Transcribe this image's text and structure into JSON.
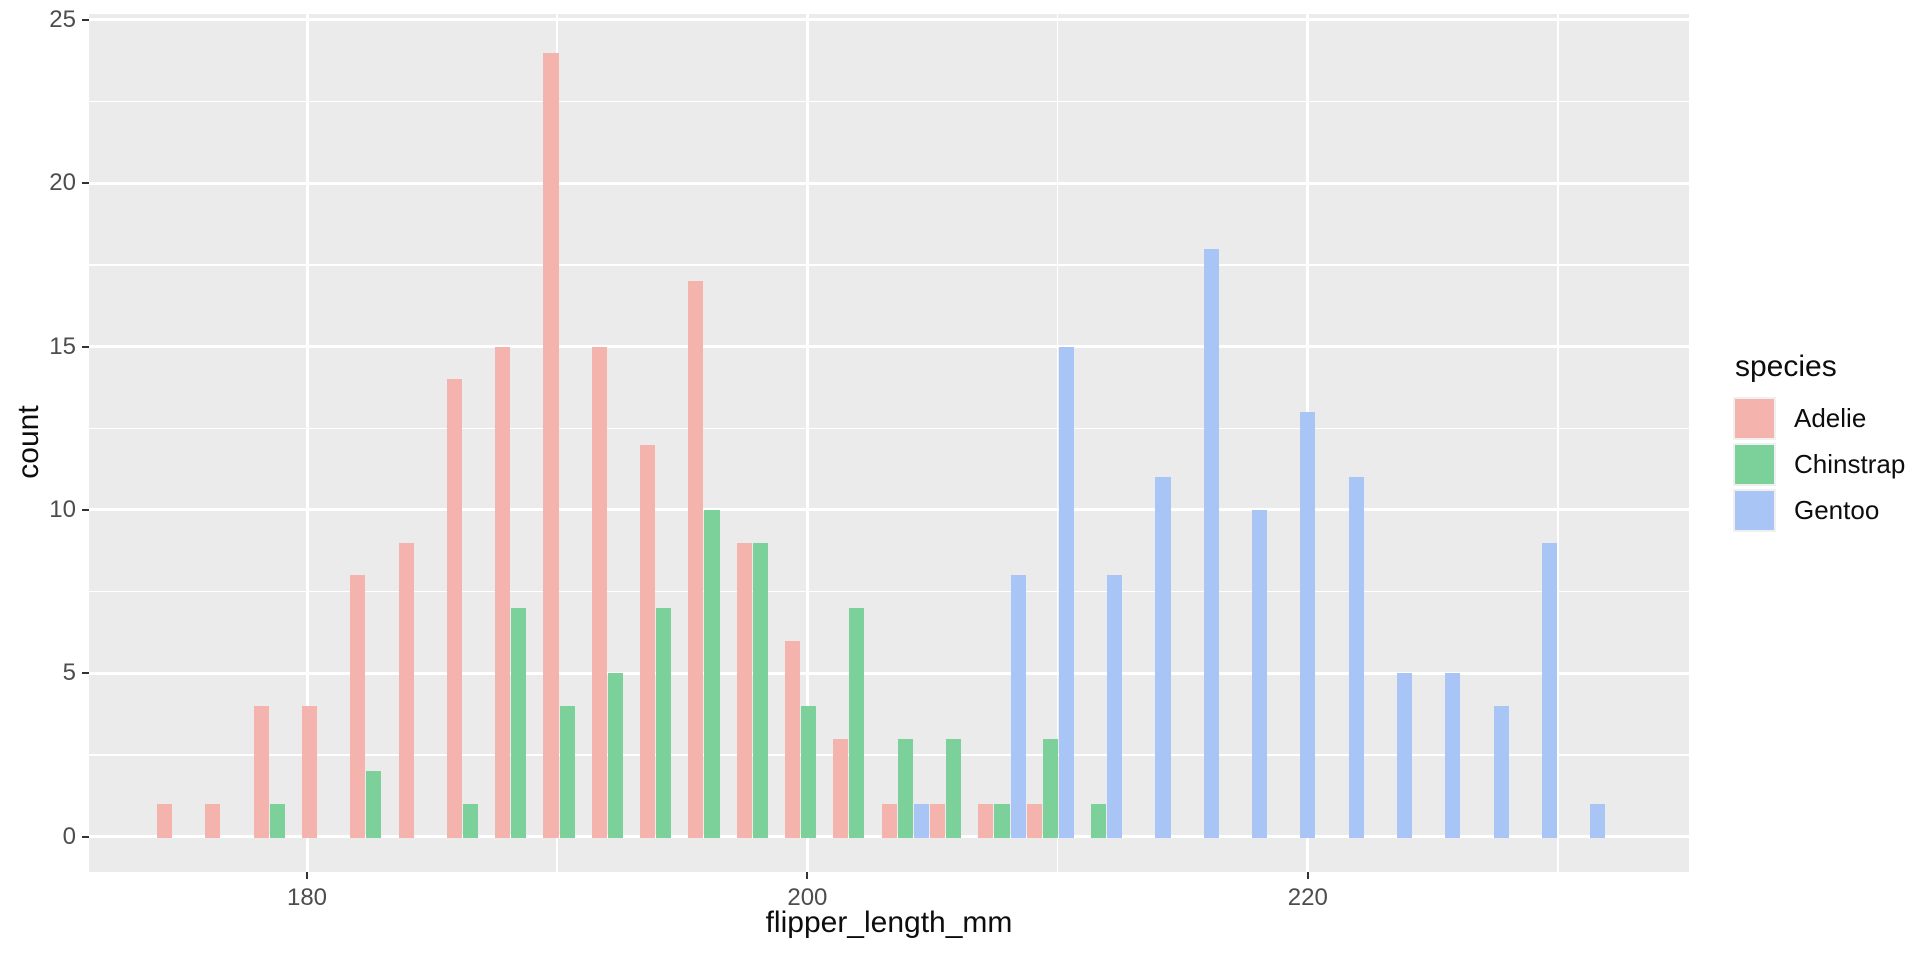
{
  "chart_data": {
    "type": "bar",
    "subtype": "dodged_histogram",
    "title": "",
    "xlabel": "flipper_length_mm",
    "ylabel": "count",
    "x_ticks": [
      180,
      200,
      220
    ],
    "x_minor_gridlines": [
      190,
      210,
      230
    ],
    "y_ticks": [
      0,
      5,
      10,
      15,
      20,
      25
    ],
    "y_minor_gridlines": [
      2.5,
      7.5,
      12.5,
      17.5,
      22.5
    ],
    "ylim": [
      0,
      25
    ],
    "legend_position": "right",
    "grid": "on",
    "bin_width_mm": 1.931,
    "bin_left_edges_mm": [
      174.0,
      175.93,
      177.86,
      179.79,
      181.72,
      183.66,
      185.59,
      187.52,
      189.45,
      191.38,
      193.31,
      195.24,
      197.17,
      199.1,
      201.03,
      202.97,
      204.9,
      206.83,
      208.76,
      210.69,
      212.62,
      214.55,
      216.48,
      218.41,
      220.34,
      222.27,
      224.21,
      226.14,
      228.07,
      230.0
    ],
    "series": [
      {
        "name": "Adelie",
        "color": "#F4B3AD",
        "counts": [
          1,
          1,
          4,
          4,
          8,
          9,
          14,
          15,
          24,
          15,
          12,
          17,
          9,
          6,
          3,
          1,
          1,
          1,
          1,
          0,
          0,
          0,
          0,
          0,
          0,
          0,
          0,
          0,
          0,
          0
        ]
      },
      {
        "name": "Chinstrap",
        "color": "#7CD09A",
        "counts": [
          0,
          0,
          1,
          0,
          2,
          0,
          1,
          7,
          4,
          5,
          7,
          10,
          9,
          4,
          7,
          3,
          3,
          1,
          3,
          1,
          0,
          0,
          0,
          0,
          0,
          0,
          0,
          0,
          0,
          0
        ]
      },
      {
        "name": "Gentoo",
        "color": "#A8C5F6",
        "counts": [
          0,
          0,
          0,
          0,
          0,
          0,
          0,
          0,
          0,
          0,
          0,
          0,
          0,
          0,
          0,
          1,
          0,
          8,
          15,
          8,
          11,
          18,
          10,
          13,
          11,
          5,
          5,
          4,
          9,
          1
        ]
      }
    ]
  },
  "legend": {
    "title": "species",
    "items": [
      {
        "label": "Adelie",
        "color": "#F4B3AD"
      },
      {
        "label": "Chinstrap",
        "color": "#7CD09A"
      },
      {
        "label": "Gentoo",
        "color": "#A8C5F6"
      }
    ]
  },
  "colors": {
    "panel_background": "#EBEBEB",
    "gridline": "#FFFFFF",
    "tick_mark": "#333333",
    "tick_label": "#4D4D4D",
    "axis_title": "#0D0D0D",
    "legend_key_background": "#F0F0F0",
    "figure_background": "#FFFFFF"
  }
}
